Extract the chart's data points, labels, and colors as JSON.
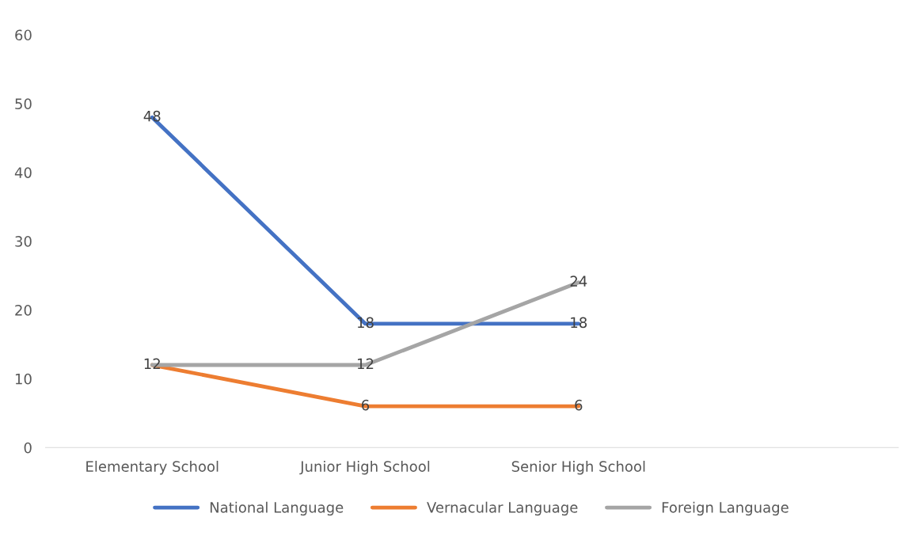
{
  "chart_data": {
    "type": "line",
    "categories": [
      "Elementary School",
      "Junior High School",
      "Senior High School",
      null
    ],
    "series": [
      {
        "name": "National Language",
        "color": "#4472c4",
        "values": [
          48,
          18,
          18,
          null
        ],
        "value_labels": [
          "48",
          "18",
          "18",
          null
        ]
      },
      {
        "name": "Vernacular Language",
        "color": "#ed7d31",
        "values": [
          12,
          6,
          6,
          null
        ],
        "value_labels": [
          "12",
          "6",
          "6",
          null
        ]
      },
      {
        "name": "Foreign Language",
        "color": "#a5a5a5",
        "values": [
          12,
          12,
          24,
          null
        ],
        "value_labels": [
          null,
          "12",
          "24",
          null
        ]
      }
    ],
    "ylim": [
      0,
      60
    ],
    "yticks": [
      0,
      10,
      20,
      30,
      40,
      50,
      60
    ],
    "grid": false,
    "legend": "bottom",
    "marker": "none",
    "line_style": "solid"
  }
}
